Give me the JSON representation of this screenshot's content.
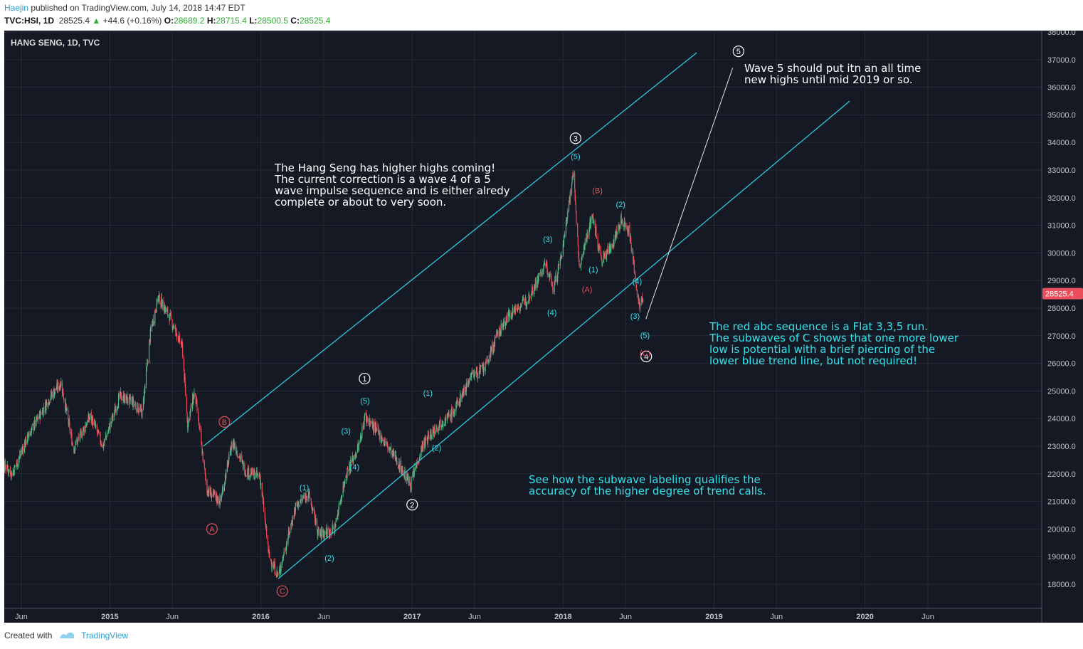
{
  "header": {
    "author": "Haejin",
    "published": "published on TradingView.com, July 14, 2018 14:47 EDT",
    "symbol": "TVC:HSI, 1D",
    "last": "28525.4",
    "change": "+44.6 (+0.16%)",
    "o_label": "O:",
    "o_val": "28689.2",
    "h_label": "H:",
    "h_val": "28715.4",
    "l_label": "L:",
    "l_val": "28500.5",
    "c_label": "C:",
    "c_val": "28525.4"
  },
  "footer": {
    "created_with": "Created with",
    "brand": "TradingView"
  },
  "colors": {
    "bg": "#151924",
    "up": "#53b987",
    "down": "#eb4d5c",
    "trend": "#2ec8dc",
    "text": "#ffffff",
    "cyan": "#35e2ec",
    "red": "#e0505a"
  },
  "annotations": {
    "a1": [
      "The Hang Seng has higher highs coming!",
      "The current correction is a wave 4 of a 5",
      "wave impulse sequence and is either alredy",
      "complete or about to very soon."
    ],
    "a2": [
      "Wave 5 should put itn an all time",
      "new highs until mid 2019 or so."
    ],
    "a3": [
      "The red abc sequence is a Flat 3,3,5 run.",
      "The subwaves of C shows that one more lower",
      "low is potential with a brief piercing of the",
      "lower blue trend line, but not required!"
    ],
    "a4": [
      "See how the subwave labeling qualifies the",
      "accuracy of the higher degree of trend calls."
    ]
  },
  "chart_data": {
    "type": "candlestick",
    "title": "HANG SENG, 1D, TVC",
    "y_ticks": [
      18000,
      19000,
      20000,
      21000,
      22000,
      23000,
      24000,
      25000,
      26000,
      27000,
      28000,
      29000,
      30000,
      31000,
      32000,
      33000,
      34000,
      35000,
      36000,
      37000,
      38000
    ],
    "ylim": [
      17400,
      38100
    ],
    "x_ticks": [
      {
        "date": "2014-06-01",
        "label": "Jun"
      },
      {
        "date": "2015-01-01",
        "label": "2015"
      },
      {
        "date": "2015-06-01",
        "label": "Jun"
      },
      {
        "date": "2016-01-01",
        "label": "2016"
      },
      {
        "date": "2016-06-01",
        "label": "Jun"
      },
      {
        "date": "2017-01-01",
        "label": "2017"
      },
      {
        "date": "2017-06-01",
        "label": "Jun"
      },
      {
        "date": "2018-01-01",
        "label": "2018"
      },
      {
        "date": "2018-06-01",
        "label": "Jun"
      },
      {
        "date": "2019-01-01",
        "label": "2019"
      },
      {
        "date": "2019-06-01",
        "label": "Jun"
      },
      {
        "date": "2020-01-01",
        "label": "2020"
      },
      {
        "date": "2020-06-01",
        "label": "Jun"
      }
    ],
    "last_price": "28525.4",
    "anchors": [
      [
        "2014-04-01",
        22600
      ],
      [
        "2014-05-10",
        22000
      ],
      [
        "2014-06-15",
        23300
      ],
      [
        "2014-08-10",
        24800
      ],
      [
        "2014-09-05",
        25300
      ],
      [
        "2014-10-05",
        22900
      ],
      [
        "2014-11-15",
        24100
      ],
      [
        "2014-12-15",
        23000
      ],
      [
        "2015-01-25",
        24800
      ],
      [
        "2015-02-25",
        24600
      ],
      [
        "2015-03-20",
        24200
      ],
      [
        "2015-04-10",
        27200
      ],
      [
        "2015-04-28",
        28400
      ],
      [
        "2015-05-25",
        27700
      ],
      [
        "2015-06-25",
        26600
      ],
      [
        "2015-07-08",
        23800
      ],
      [
        "2015-07-25",
        25000
      ],
      [
        "2015-08-24",
        21400
      ],
      [
        "2015-09-25",
        21000
      ],
      [
        "2015-10-25",
        23200
      ],
      [
        "2015-11-25",
        22100
      ],
      [
        "2015-12-30",
        21900
      ],
      [
        "2016-01-21",
        19000
      ],
      [
        "2016-02-12",
        18300
      ],
      [
        "2016-03-25",
        20800
      ],
      [
        "2016-04-25",
        21300
      ],
      [
        "2016-05-20",
        19800
      ],
      [
        "2016-06-27",
        20000
      ],
      [
        "2016-07-25",
        22000
      ],
      [
        "2016-08-25",
        23000
      ],
      [
        "2016-09-09",
        24100
      ],
      [
        "2016-10-20",
        23300
      ],
      [
        "2016-11-20",
        22600
      ],
      [
        "2016-12-28",
        21600
      ],
      [
        "2017-01-25",
        23000
      ],
      [
        "2017-03-05",
        23800
      ],
      [
        "2017-04-10",
        24200
      ],
      [
        "2017-05-25",
        25600
      ],
      [
        "2017-06-25",
        25800
      ],
      [
        "2017-07-25",
        27000
      ],
      [
        "2017-08-25",
        27800
      ],
      [
        "2017-10-05",
        28300
      ],
      [
        "2017-11-20",
        29600
      ],
      [
        "2017-12-08",
        28700
      ],
      [
        "2017-12-28",
        29900
      ],
      [
        "2018-01-26",
        33000
      ],
      [
        "2018-02-09",
        29400
      ],
      [
        "2018-03-12",
        31400
      ],
      [
        "2018-04-04",
        29700
      ],
      [
        "2018-05-02",
        30400
      ],
      [
        "2018-05-22",
        31200
      ],
      [
        "2018-06-10",
        30800
      ],
      [
        "2018-06-28",
        28700
      ],
      [
        "2018-07-05",
        28000
      ],
      [
        "2018-07-14",
        28525
      ]
    ],
    "series": [
      {
        "name": "upper trend line",
        "points": [
          [
            "2015-08-15",
            23000
          ],
          [
            "2018-11-20",
            37250
          ]
        ]
      },
      {
        "name": "lower trend line",
        "points": [
          [
            "2016-02-12",
            18200
          ],
          [
            "2019-11-25",
            35500
          ]
        ]
      },
      {
        "name": "projection",
        "points": [
          [
            "2018-07-20",
            27600
          ],
          [
            "2019-02-15",
            36700
          ]
        ]
      }
    ],
    "labels": [
      {
        "text": "B",
        "date": "2015-10-05",
        "y": 23880,
        "style": "circle",
        "color": "red"
      },
      {
        "text": "A",
        "date": "2015-09-05",
        "y": 20000,
        "style": "circle",
        "color": "red"
      },
      {
        "text": "C",
        "date": "2016-02-22",
        "y": 17750,
        "style": "circle",
        "color": "red"
      },
      {
        "text": "1",
        "date": "2016-09-08",
        "y": 25450,
        "style": "circle",
        "color": "white"
      },
      {
        "text": "2",
        "date": "2017-01-01",
        "y": 20880,
        "style": "circle",
        "color": "white"
      },
      {
        "text": "3",
        "date": "2018-01-31",
        "y": 34150,
        "style": "circle",
        "color": "white"
      },
      {
        "text": "4",
        "date": "2018-07-21",
        "y": 26250,
        "style": "circle",
        "color": "white"
      },
      {
        "text": "5",
        "date": "2019-03-01",
        "y": 37300,
        "style": "circle",
        "color": "white"
      },
      {
        "text": "(1)",
        "date": "2016-04-15",
        "y": 21500,
        "style": "paren",
        "color": "cyan"
      },
      {
        "text": "(2)",
        "date": "2016-06-15",
        "y": 18950,
        "style": "paren",
        "color": "cyan"
      },
      {
        "text": "(3)",
        "date": "2016-07-25",
        "y": 23550,
        "style": "paren",
        "color": "cyan"
      },
      {
        "text": "(4)",
        "date": "2016-08-15",
        "y": 22250,
        "style": "paren",
        "color": "cyan"
      },
      {
        "text": "(5)",
        "date": "2016-09-09",
        "y": 24650,
        "style": "paren",
        "color": "cyan"
      },
      {
        "text": "(1)",
        "date": "2017-02-08",
        "y": 24930,
        "style": "paren",
        "color": "cyan"
      },
      {
        "text": "(2)",
        "date": "2017-03-01",
        "y": 22950,
        "style": "paren",
        "color": "cyan"
      },
      {
        "text": "(3)",
        "date": "2017-11-25",
        "y": 30500,
        "style": "paren",
        "color": "cyan"
      },
      {
        "text": "(4)",
        "date": "2017-12-05",
        "y": 27850,
        "style": "paren",
        "color": "cyan"
      },
      {
        "text": "(5)",
        "date": "2018-01-31",
        "y": 33500,
        "style": "paren",
        "color": "cyan"
      },
      {
        "text": "(1)",
        "date": "2018-03-15",
        "y": 29400,
        "style": "paren",
        "color": "cyan"
      },
      {
        "text": "(2)",
        "date": "2018-05-20",
        "y": 31760,
        "style": "paren",
        "color": "cyan"
      },
      {
        "text": "(4)",
        "date": "2018-06-29",
        "y": 28980,
        "style": "paren",
        "color": "cyan"
      },
      {
        "text": "(3)",
        "date": "2018-06-24",
        "y": 27720,
        "style": "paren",
        "color": "cyan"
      },
      {
        "text": "(5)",
        "date": "2018-07-18",
        "y": 27020,
        "style": "paren",
        "color": "cyan"
      },
      {
        "text": "(A)",
        "date": "2018-02-28",
        "y": 28680,
        "style": "paren",
        "color": "red"
      },
      {
        "text": "(B)",
        "date": "2018-03-25",
        "y": 32260,
        "style": "paren",
        "color": "red"
      },
      {
        "text": "(C)",
        "date": "2018-07-18",
        "y": 26380,
        "style": "paren",
        "color": "red"
      }
    ]
  }
}
